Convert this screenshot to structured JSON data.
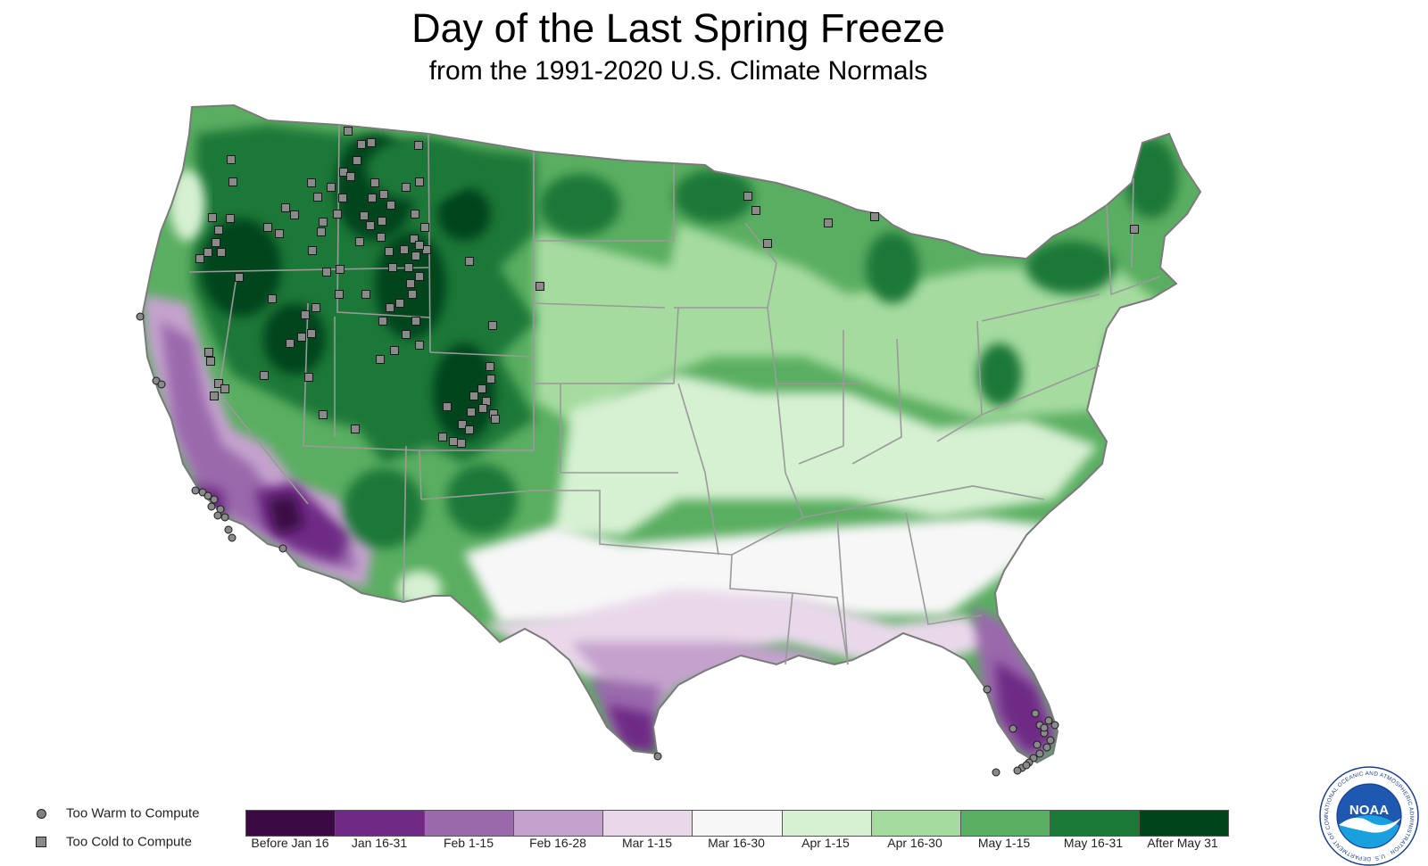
{
  "title": "Day of the Last Spring Freeze",
  "subtitle": "from the 1991-2020 U.S. Climate Normals",
  "legend": {
    "too_warm": "Too Warm to Compute",
    "too_cold": "Too Cold to Compute"
  },
  "scale": [
    {
      "label": "Before Jan 16",
      "color": "#3b0a45"
    },
    {
      "label": "Jan 16-31",
      "color": "#6e2a85"
    },
    {
      "label": "Feb 1-15",
      "color": "#9a69ac"
    },
    {
      "label": "Feb 16-28",
      "color": "#c4a2cd"
    },
    {
      "label": "Mar 1-15",
      "color": "#e9d8ea"
    },
    {
      "label": "Mar 16-30",
      "color": "#f7f7f7"
    },
    {
      "label": "Apr 1-15",
      "color": "#d6f0d2"
    },
    {
      "label": "Apr 16-30",
      "color": "#a5db9f"
    },
    {
      "label": "May 1-15",
      "color": "#5aae61"
    },
    {
      "label": "May 16-31",
      "color": "#1b7837"
    },
    {
      "label": "After May 31",
      "color": "#00441b"
    }
  ],
  "logo": {
    "text": "NOAA",
    "ring_text": "NATIONAL OCEANIC AND ATMOSPHERIC ADMINISTRATION · U.S. DEPARTMENT OF COMMERCE"
  }
}
